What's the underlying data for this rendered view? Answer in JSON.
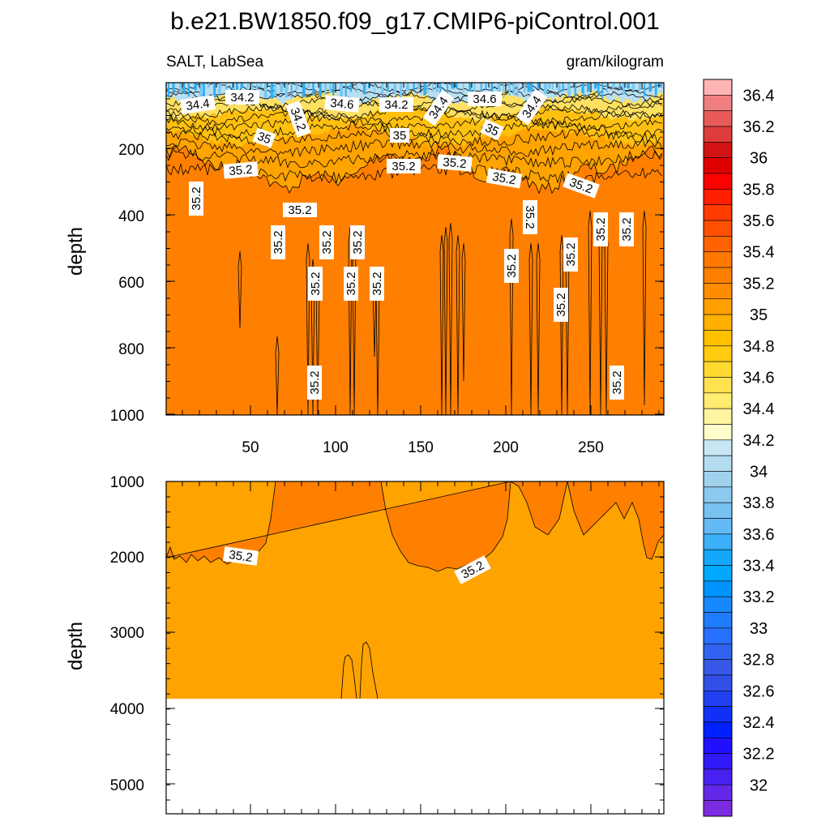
{
  "title": "b.e21.BW1850.f09_g17.CMIP6-piControl.001",
  "subtitle_left": "SALT, LabSea",
  "subtitle_right": "gram/kilogram",
  "colors": {
    "background_fill": "#ff8000",
    "mid_fill": "#ffa300",
    "frame": "#000000"
  },
  "chart_data": [
    {
      "type": "heatmap",
      "name": "upper-panel",
      "ylabel": "depth",
      "xlim": [
        0,
        292
      ],
      "ylim": [
        1000,
        0
      ],
      "x_ticks": [
        "50",
        "100",
        "150",
        "200",
        "250"
      ],
      "y_ticks": [
        "200",
        "400",
        "600",
        "800",
        "1000"
      ],
      "contour_labels": [
        "34.4",
        "34.2",
        "34.6",
        "34.2",
        "34.4",
        "34.6",
        "34.4",
        "34.2",
        "35",
        "35",
        "35",
        "35.2",
        "35.2",
        "35.2",
        "35.2",
        "35.2",
        "35.2",
        "35.2",
        "35.2",
        "35.2",
        "35.2",
        "35.2",
        "35.2",
        "35.2",
        "35.2",
        "35.2",
        "35.2",
        "35.2",
        "35.2",
        "35.2",
        "35.2",
        "35.2"
      ]
    },
    {
      "type": "heatmap",
      "name": "lower-panel",
      "ylabel": "depth",
      "xlim": [
        0,
        292
      ],
      "ylim": [
        5400,
        1000
      ],
      "y_ticks": [
        "1000",
        "2000",
        "3000",
        "4000",
        "5000"
      ],
      "contour_labels": [
        "35.2",
        "35.2"
      ],
      "bottom_depth": 3870
    }
  ],
  "colorbar": {
    "labels": [
      "36.4",
      "36.2",
      "36",
      "35.8",
      "35.6",
      "35.4",
      "35.2",
      "35",
      "34.8",
      "34.6",
      "34.4",
      "34.2",
      "34",
      "33.8",
      "33.6",
      "33.4",
      "33.2",
      "33",
      "32.8",
      "32.6",
      "32.4",
      "32.2",
      "32"
    ],
    "colors": [
      "#ffb4b4",
      "#f08080",
      "#e85a5a",
      "#de3c3c",
      "#d21414",
      "#e00000",
      "#ff0000",
      "#ff1e00",
      "#ff3c00",
      "#ff5000",
      "#ff6400",
      "#ff7800",
      "#ff8000",
      "#ff8c00",
      "#ffa000",
      "#ffb000",
      "#ffc000",
      "#ffcc10",
      "#ffd830",
      "#ffe250",
      "#ffec70",
      "#fff4a0",
      "#ffffcc",
      "#c6e6f4",
      "#b4dcf0",
      "#a0d2ee",
      "#8ccaf0",
      "#78c2f2",
      "#64baf4",
      "#3cb0f8",
      "#14a8fc",
      "#00a8ff",
      "#0094ff",
      "#1888ff",
      "#207cff",
      "#2870ff",
      "#3064f0",
      "#3858e8",
      "#3050e8",
      "#2040f0",
      "#1030f8",
      "#0020ff",
      "#2010ff",
      "#3018f8",
      "#4820f0",
      "#6428e8",
      "#7c2ce0"
    ]
  }
}
